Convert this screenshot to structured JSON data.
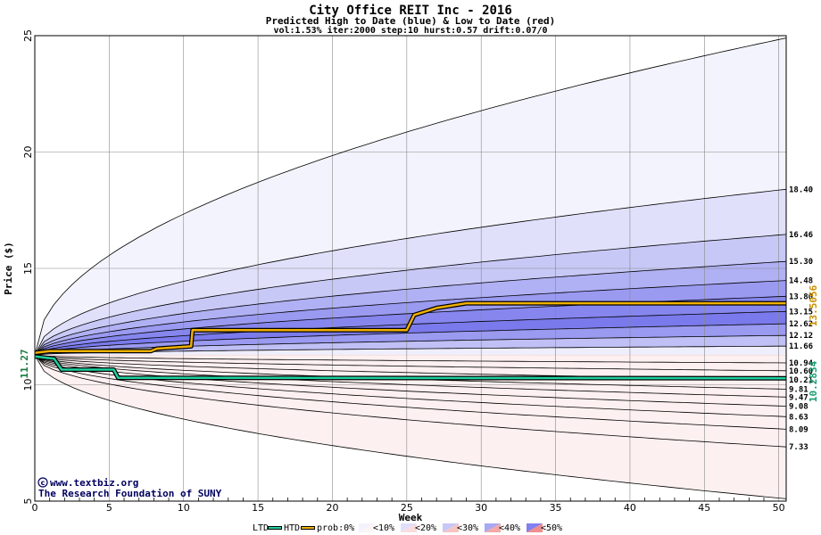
{
  "chart_data": {
    "type": "area",
    "title": "City Office REIT Inc - 2016",
    "subtitle": "Predicted High to Date (blue) &  Low to Date (red)",
    "params": "vol:1.53% iter:2000 step:10 hurst:0.57 drift:0.07/0",
    "xlabel": "Week",
    "ylabel": "Price ($)",
    "xlim": [
      0,
      50.5
    ],
    "ylim": [
      5,
      25
    ],
    "x_ticks": [
      0,
      5,
      10,
      15,
      20,
      25,
      30,
      35,
      40,
      45,
      50
    ],
    "y_ticks": [
      5,
      10,
      15,
      20,
      25
    ],
    "grid": true,
    "start_price": 11.27,
    "start_price_label": "11.27",
    "high_to_date_label": "13.5056",
    "low_to_date_label": "10.2834",
    "right_labels": [
      "18.40",
      "16.46",
      "15.30",
      "14.48",
      "13.80",
      "13.15",
      "12.62",
      "12.12",
      "11.66",
      "10.94",
      "10.60",
      "10.21",
      "9.81",
      "9.47",
      "9.08",
      "8.63",
      "8.09",
      "7.33"
    ],
    "upper_bands": [
      {
        "end": 24.9,
        "fill": "#f3f3fd"
      },
      {
        "end": 18.4,
        "fill": "#e0e0fb"
      },
      {
        "end": 16.46,
        "fill": "#c8c8f7"
      },
      {
        "end": 15.3,
        "fill": "#b0b0f4"
      },
      {
        "end": 14.48,
        "fill": "#9a9af1"
      },
      {
        "end": 13.8,
        "fill": "#8686ee"
      },
      {
        "end": 13.15,
        "fill": "#7a7aec"
      },
      {
        "end": 12.62,
        "fill": "#9a9af1"
      },
      {
        "end": 12.12,
        "fill": "#c0c0f6"
      },
      {
        "end": 11.66,
        "fill": "#eeeefd"
      }
    ],
    "lower_bands": [
      {
        "end": 10.94,
        "fill": "#fdf4f4"
      },
      {
        "end": 10.6,
        "fill": "#fadcdc"
      },
      {
        "end": 10.21,
        "fill": "#f7c4c4"
      },
      {
        "end": 9.81,
        "fill": "#f4a8a8"
      },
      {
        "end": 9.47,
        "fill": "#f08e8e"
      },
      {
        "end": 9.08,
        "fill": "#f4a4a4"
      },
      {
        "end": 8.63,
        "fill": "#f7baba"
      },
      {
        "end": 8.09,
        "fill": "#f9cccc"
      },
      {
        "end": 7.33,
        "fill": "#fcdede"
      },
      {
        "end": 5.1,
        "fill": "#fdf0f0"
      }
    ],
    "htd": {
      "color": "#f0b000",
      "x": [
        0,
        1,
        7.8,
        8.2,
        10.5,
        10.6,
        25,
        25.5,
        27,
        29,
        50.5
      ],
      "values": [
        11.37,
        11.45,
        11.45,
        11.55,
        11.65,
        12.35,
        12.35,
        13.0,
        13.3,
        13.5,
        13.5
      ]
    },
    "ltd": {
      "color": "#20d0a0",
      "x": [
        0,
        1.3,
        1.8,
        5.3,
        5.6,
        50.5
      ],
      "values": [
        11.22,
        11.12,
        10.65,
        10.65,
        10.3,
        10.28
      ]
    },
    "legend": {
      "ltd": "LTD",
      "htd": "HTD",
      "prob_label": "prob:0%",
      "items": [
        "<10%",
        "<20%",
        "<30%",
        "<40%",
        "<50%"
      ],
      "swatches": [
        {
          "blue": "#f3f3fd",
          "red": "#fdf4f4"
        },
        {
          "blue": "#e0e0fb",
          "red": "#fadcdc"
        },
        {
          "blue": "#c8c8f7",
          "red": "#f7c4c4"
        },
        {
          "blue": "#a8a8f3",
          "red": "#f4a8a8"
        },
        {
          "blue": "#8080ee",
          "red": "#f08e8e"
        }
      ]
    }
  },
  "credits": {
    "site": "www.textbiz.org",
    "org": "The Research Foundation of SUNY"
  }
}
